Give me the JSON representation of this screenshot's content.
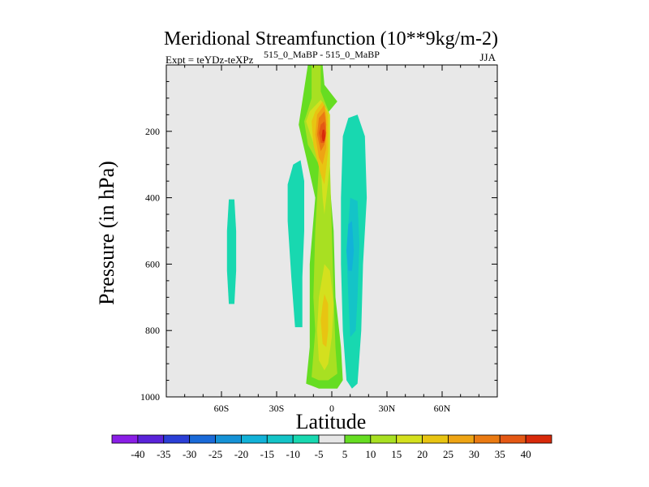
{
  "chart_data": {
    "type": "contour",
    "title": "Meridional Streamfunction (10**9kg/m-2)",
    "subtitle_left": "Expt = teYDz-teXPz",
    "subtitle_super": "515_0_MaBP - 515_0_MaBP",
    "season": "JJA",
    "xlabel": "Latitude",
    "ylabel": "Pressure (in hPa)",
    "xlim": [
      -90,
      90
    ],
    "ylim": [
      0,
      1000
    ],
    "y_inverted": true,
    "x_ticks": [
      {
        "value": -60,
        "label": "60S"
      },
      {
        "value": -30,
        "label": "30S"
      },
      {
        "value": 0,
        "label": "0"
      },
      {
        "value": 30,
        "label": "30N"
      },
      {
        "value": 60,
        "label": "60N"
      }
    ],
    "y_ticks": [
      {
        "value": 200,
        "label": "200"
      },
      {
        "value": 400,
        "label": "400"
      },
      {
        "value": 600,
        "label": "600"
      },
      {
        "value": 800,
        "label": "800"
      },
      {
        "value": 1000,
        "label": "1000"
      }
    ],
    "background_color": "#e8e8e8",
    "colorbar": {
      "labels": [
        "-40",
        "-35",
        "-30",
        "-25",
        "-20",
        "-15",
        "-10",
        "-5",
        "5",
        "10",
        "15",
        "20",
        "25",
        "30",
        "35",
        "40"
      ],
      "colors": [
        "#8a1ee6",
        "#5a23d9",
        "#2b3fd6",
        "#1a6ad8",
        "#1592d6",
        "#12b2d8",
        "#14c4c7",
        "#18d8b0",
        "#e6e6e6",
        "#66dd22",
        "#a8e022",
        "#d4e01e",
        "#e8c412",
        "#eea414",
        "#ea7a12",
        "#e45814",
        "#d82a0a"
      ]
    },
    "regions": [
      {
        "name": "cell-far-south",
        "level": -5,
        "color": "#18d8b0",
        "path": [
          [
            -56,
            405
          ],
          [
            -53,
            405
          ],
          [
            -52,
            500
          ],
          [
            -52,
            620
          ],
          [
            -53,
            720
          ],
          [
            -56,
            720
          ],
          [
            -57,
            620
          ],
          [
            -57,
            500
          ]
        ]
      },
      {
        "name": "cell-south",
        "level": -5,
        "color": "#18d8b0",
        "path": [
          [
            -21,
            300
          ],
          [
            -17,
            287
          ],
          [
            -15,
            350
          ],
          [
            -15,
            500
          ],
          [
            -16,
            640
          ],
          [
            -16,
            790
          ],
          [
            -20,
            790
          ],
          [
            -22,
            640
          ],
          [
            -24,
            470
          ],
          [
            -24,
            360
          ]
        ]
      },
      {
        "name": "cell-north-outer",
        "level": -5,
        "color": "#18d8b0",
        "path": [
          [
            6,
            215
          ],
          [
            9,
            160
          ],
          [
            14,
            150
          ],
          [
            18,
            215
          ],
          [
            19,
            400
          ],
          [
            17,
            600
          ],
          [
            16,
            800
          ],
          [
            14,
            960
          ],
          [
            11,
            975
          ],
          [
            8,
            950
          ],
          [
            6,
            800
          ],
          [
            5,
            600
          ],
          [
            5,
            400
          ]
        ]
      },
      {
        "name": "cell-north-inner",
        "level": -10,
        "color": "#14c4c7",
        "path": [
          [
            10,
            400
          ],
          [
            14,
            410
          ],
          [
            15,
            540
          ],
          [
            14,
            700
          ],
          [
            13,
            800
          ],
          [
            10,
            820
          ],
          [
            9,
            700
          ],
          [
            8,
            560
          ]
        ]
      },
      {
        "name": "cell-north-core",
        "level": -15,
        "color": "#12b2d8",
        "path": [
          [
            9,
            480
          ],
          [
            11,
            470
          ],
          [
            12,
            560
          ],
          [
            11,
            620
          ],
          [
            9,
            620
          ],
          [
            8,
            560
          ]
        ]
      },
      {
        "name": "hadley-5",
        "level": 5,
        "color": "#66dd22",
        "path": [
          [
            -13,
            0
          ],
          [
            -5,
            0
          ],
          [
            -4,
            60
          ],
          [
            3,
            110
          ],
          [
            -3,
            150
          ],
          [
            -2,
            300
          ],
          [
            1,
            500
          ],
          [
            2,
            700
          ],
          [
            4,
            800
          ],
          [
            5,
            850
          ],
          [
            6,
            950
          ],
          [
            3,
            975
          ],
          [
            -7,
            975
          ],
          [
            -14,
            960
          ],
          [
            -12,
            850
          ],
          [
            -12,
            600
          ],
          [
            -9,
            400
          ],
          [
            -13,
            300
          ],
          [
            -18,
            180
          ]
        ]
      },
      {
        "name": "hadley-10",
        "level": 10,
        "color": "#a8e022",
        "path": [
          [
            -11,
            0
          ],
          [
            -6,
            0
          ],
          [
            -6,
            80
          ],
          [
            -1,
            150
          ],
          [
            -1,
            300
          ],
          [
            0,
            500
          ],
          [
            1,
            700
          ],
          [
            2,
            850
          ],
          [
            3,
            930
          ],
          [
            -2,
            950
          ],
          [
            -7,
            950
          ],
          [
            -11,
            940
          ],
          [
            -9,
            800
          ],
          [
            -10,
            700
          ],
          [
            -9,
            500
          ],
          [
            -7,
            300
          ],
          [
            -13,
            240
          ],
          [
            -15,
            170
          ],
          [
            -11,
            100
          ]
        ]
      },
      {
        "name": "hadley-15",
        "level": 15,
        "color": "#d4e01e",
        "path": [
          [
            -12,
            140
          ],
          [
            -6,
            105
          ],
          [
            -1,
            150
          ],
          [
            -1,
            220
          ],
          [
            -1,
            300
          ],
          [
            -3,
            400
          ],
          [
            -4,
            450
          ],
          [
            -5,
            400
          ],
          [
            -6,
            300
          ],
          [
            -11,
            220
          ],
          [
            -14,
            170
          ]
        ]
      },
      {
        "name": "hadley-15-low",
        "level": 15,
        "color": "#d4e01e",
        "path": [
          [
            -4,
            600
          ],
          [
            -1,
            620
          ],
          [
            1,
            720
          ],
          [
            0,
            820
          ],
          [
            -2,
            900
          ],
          [
            -4,
            920
          ],
          [
            -7,
            890
          ],
          [
            -8,
            800
          ],
          [
            -7,
            700
          ]
        ]
      },
      {
        "name": "hadley-20",
        "level": 20,
        "color": "#e8c412",
        "path": [
          [
            -9,
            140
          ],
          [
            -5,
            110
          ],
          [
            -2,
            150
          ],
          [
            -2,
            260
          ],
          [
            -4,
            360
          ],
          [
            -6,
            330
          ],
          [
            -10,
            240
          ],
          [
            -11,
            170
          ]
        ]
      },
      {
        "name": "hadley-20-low",
        "level": 20,
        "color": "#e8c412",
        "path": [
          [
            -4,
            690
          ],
          [
            -2,
            720
          ],
          [
            -2,
            800
          ],
          [
            -3,
            850
          ],
          [
            -5,
            840
          ],
          [
            -6,
            770
          ],
          [
            -5,
            720
          ]
        ]
      },
      {
        "name": "hadley-25",
        "level": 25,
        "color": "#eea414",
        "path": [
          [
            -8,
            150
          ],
          [
            -4,
            120
          ],
          [
            -3,
            160
          ],
          [
            -3,
            250
          ],
          [
            -5,
            300
          ],
          [
            -7,
            280
          ],
          [
            -9,
            210
          ]
        ]
      },
      {
        "name": "hadley-30",
        "level": 30,
        "color": "#ea7a12",
        "path": [
          [
            -7,
            160
          ],
          [
            -4,
            140
          ],
          [
            -3,
            180
          ],
          [
            -4,
            240
          ],
          [
            -6,
            260
          ],
          [
            -8,
            210
          ]
        ]
      },
      {
        "name": "hadley-35",
        "level": 35,
        "color": "#e45814",
        "path": [
          [
            -6,
            180
          ],
          [
            -4,
            170
          ],
          [
            -3,
            205
          ],
          [
            -4,
            235
          ],
          [
            -6,
            235
          ],
          [
            -7,
            205
          ]
        ]
      },
      {
        "name": "hadley-40",
        "level": 40,
        "color": "#d82a0a",
        "path": [
          [
            -5,
            195
          ],
          [
            -4,
            195
          ],
          [
            -3.5,
            215
          ],
          [
            -4,
            230
          ],
          [
            -5,
            230
          ],
          [
            -5.5,
            215
          ]
        ]
      }
    ]
  }
}
